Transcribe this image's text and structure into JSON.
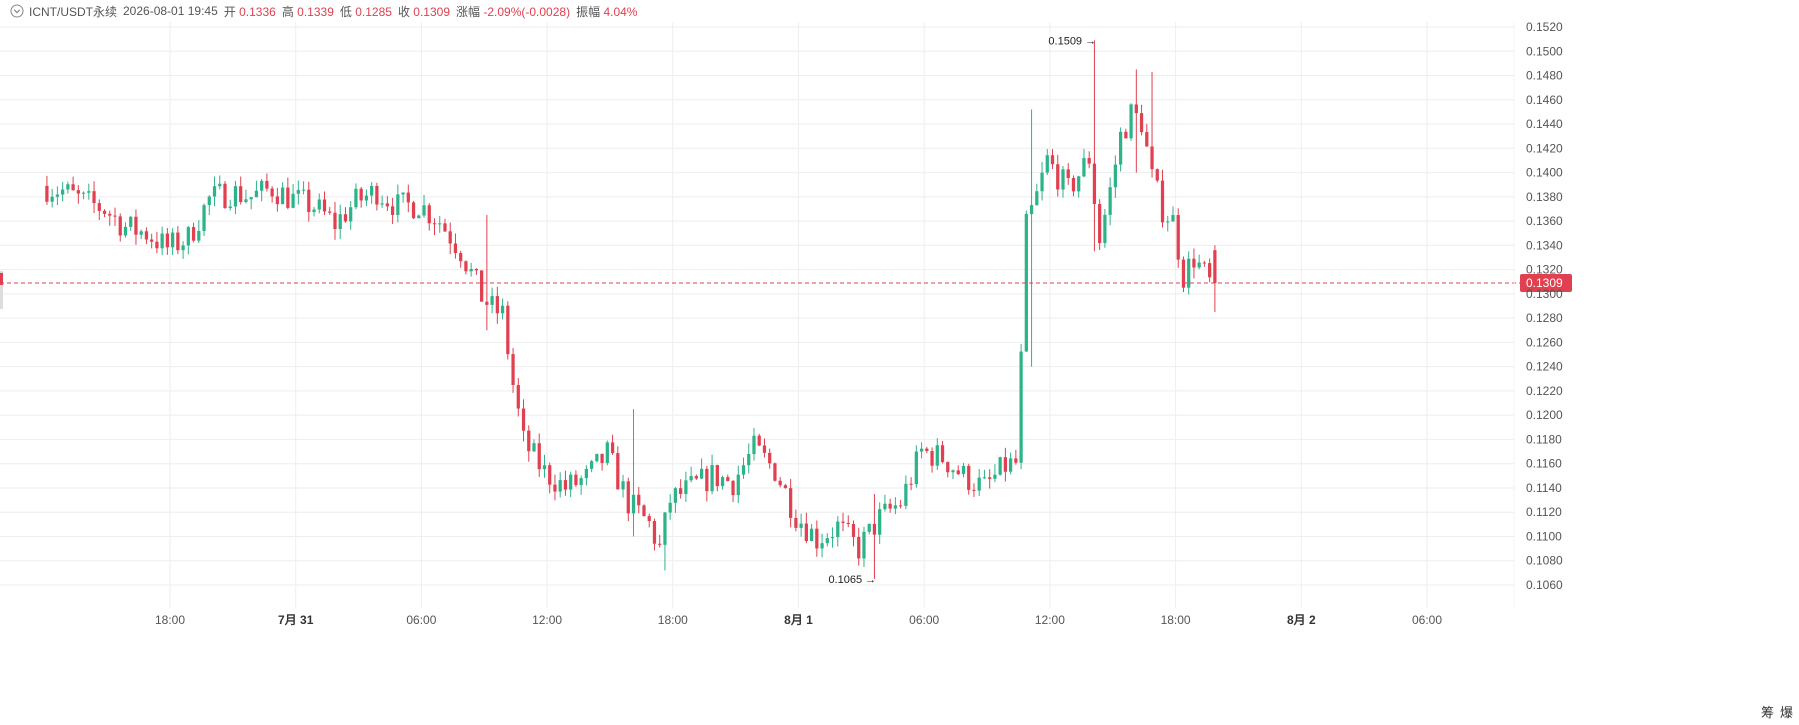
{
  "header": {
    "symbol": "ICNT/USDT永续",
    "datetime": "2026-08-01 19:45",
    "open_label": "开",
    "open": "0.1336",
    "high_label": "高",
    "high": "0.1339",
    "low_label": "低",
    "low": "0.1285",
    "close_label": "收",
    "close": "0.1309",
    "change_label": "涨幅",
    "change": "-2.09%(-0.0028)",
    "amplitude_label": "振幅",
    "amplitude": "4.04%"
  },
  "colors": {
    "up": "#2db389",
    "down": "#e0404f",
    "grid": "#eeeeee",
    "axis_text": "#555555"
  },
  "corner": {
    "label_a": "筹",
    "label_b": "爆"
  },
  "chart_data": {
    "type": "candlestick",
    "title": "ICNT/USDT永续",
    "ylim": [
      0.105,
      0.153
    ],
    "y_ticks": [
      "0.1520",
      "0.1500",
      "0.1480",
      "0.1460",
      "0.1440",
      "0.1420",
      "0.1400",
      "0.1380",
      "0.1360",
      "0.1340",
      "0.1320",
      "0.1300",
      "0.1280",
      "0.1260",
      "0.1240",
      "0.1220",
      "0.1200",
      "0.1180",
      "0.1160",
      "0.1140",
      "0.1120",
      "0.1100",
      "0.1080",
      "0.1060"
    ],
    "x_ticks": [
      {
        "label": "18:00",
        "t": "07-30 18:00",
        "bold": false
      },
      {
        "label": "7月 31",
        "t": "07-31 00:00",
        "bold": true
      },
      {
        "label": "06:00",
        "t": "07-31 06:00",
        "bold": false
      },
      {
        "label": "12:00",
        "t": "07-31 12:00",
        "bold": false
      },
      {
        "label": "18:00",
        "t": "07-31 18:00",
        "bold": false
      },
      {
        "label": "8月 1",
        "t": "08-01 00:00",
        "bold": true
      },
      {
        "label": "06:00",
        "t": "08-01 06:00",
        "bold": false
      },
      {
        "label": "12:00",
        "t": "08-01 12:00",
        "bold": false
      },
      {
        "label": "18:00",
        "t": "08-01 18:00",
        "bold": false
      },
      {
        "label": "8月 2",
        "t": "08-02 00:00",
        "bold": true
      },
      {
        "label": "06:00",
        "t": "08-02 06:00",
        "bold": false
      }
    ],
    "last_price": "0.1309",
    "annotations": [
      {
        "text": "0.1509",
        "value": 0.1509
      },
      {
        "text": "0.1065",
        "value": 0.1065
      }
    ],
    "anchors": [
      {
        "t": "07-30 12:00",
        "c": 0.1389
      },
      {
        "t": "07-30 13:00",
        "c": 0.1385
      },
      {
        "t": "07-30 14:00",
        "c": 0.1376
      },
      {
        "t": "07-30 15:00",
        "c": 0.137
      },
      {
        "t": "07-30 16:00",
        "c": 0.1355
      },
      {
        "t": "07-30 17:00",
        "c": 0.135
      },
      {
        "t": "07-30 18:00",
        "c": 0.1338
      },
      {
        "t": "07-30 19:00",
        "c": 0.1346
      },
      {
        "t": "07-30 20:00",
        "c": 0.1378
      },
      {
        "t": "07-30 21:00",
        "c": 0.1384
      },
      {
        "t": "07-30 22:00",
        "c": 0.138
      },
      {
        "t": "07-30 23:00",
        "c": 0.1387
      },
      {
        "t": "07-31 00:00",
        "c": 0.1378
      },
      {
        "t": "07-31 01:00",
        "c": 0.1372
      },
      {
        "t": "07-31 02:00",
        "c": 0.1358
      },
      {
        "t": "07-31 03:00",
        "c": 0.1376
      },
      {
        "t": "07-31 04:00",
        "c": 0.1385
      },
      {
        "t": "07-31 05:00",
        "c": 0.1372
      },
      {
        "t": "07-31 06:00",
        "c": 0.1374
      },
      {
        "t": "07-31 07:00",
        "c": 0.136
      },
      {
        "t": "07-31 08:00",
        "c": 0.1336
      },
      {
        "t": "07-31 09:00",
        "c": 0.1298
      },
      {
        "t": "07-31 09:30",
        "c": 0.1288
      },
      {
        "t": "07-31 10:00",
        "c": 0.1283
      },
      {
        "t": "07-31 10:30",
        "c": 0.1225
      },
      {
        "t": "07-31 11:00",
        "c": 0.1178
      },
      {
        "t": "07-31 12:00",
        "c": 0.1153
      },
      {
        "t": "07-31 13:00",
        "c": 0.114
      },
      {
        "t": "07-31 14:00",
        "c": 0.1148
      },
      {
        "t": "07-31 15:00",
        "c": 0.1168
      },
      {
        "t": "07-31 16:00",
        "c": 0.1128
      },
      {
        "t": "07-31 17:00",
        "c": 0.111
      },
      {
        "t": "07-31 17:30",
        "c": 0.109
      },
      {
        "t": "07-31 18:00",
        "c": 0.113
      },
      {
        "t": "07-31 19:00",
        "c": 0.114
      },
      {
        "t": "07-31 20:00",
        "c": 0.115
      },
      {
        "t": "07-31 21:00",
        "c": 0.1145
      },
      {
        "t": "07-31 22:00",
        "c": 0.1172
      },
      {
        "t": "07-31 23:00",
        "c": 0.1155
      },
      {
        "t": "08-01 00:00",
        "c": 0.1118
      },
      {
        "t": "08-01 01:00",
        "c": 0.1098
      },
      {
        "t": "08-01 02:00",
        "c": 0.1108
      },
      {
        "t": "08-01 03:00",
        "c": 0.109
      },
      {
        "t": "08-01 04:00",
        "c": 0.1115
      },
      {
        "t": "08-01 05:00",
        "c": 0.1128
      },
      {
        "t": "08-01 06:00",
        "c": 0.117
      },
      {
        "t": "08-01 07:00",
        "c": 0.1165
      },
      {
        "t": "08-01 08:00",
        "c": 0.115
      },
      {
        "t": "08-01 09:00",
        "c": 0.114
      },
      {
        "t": "08-01 10:00",
        "c": 0.1158
      },
      {
        "t": "08-01 10:30",
        "c": 0.116
      },
      {
        "t": "08-01 10:45",
        "c": 0.1245
      },
      {
        "t": "08-01 11:00",
        "c": 0.1355
      },
      {
        "t": "08-01 11:30",
        "c": 0.138
      },
      {
        "t": "08-01 12:00",
        "c": 0.141
      },
      {
        "t": "08-01 13:00",
        "c": 0.1385
      },
      {
        "t": "08-01 14:00",
        "c": 0.1412
      },
      {
        "t": "08-01 14:30",
        "c": 0.1345
      },
      {
        "t": "08-01 15:00",
        "c": 0.1385
      },
      {
        "t": "08-01 15:30",
        "c": 0.143
      },
      {
        "t": "08-01 16:00",
        "c": 0.1448
      },
      {
        "t": "08-01 16:30",
        "c": 0.1442
      },
      {
        "t": "08-01 17:00",
        "c": 0.1395
      },
      {
        "t": "08-01 17:30",
        "c": 0.137
      },
      {
        "t": "08-01 18:00",
        "c": 0.136
      },
      {
        "t": "08-01 18:30",
        "c": 0.1315
      },
      {
        "t": "08-01 19:00",
        "c": 0.133
      },
      {
        "t": "08-01 19:45",
        "c": 0.1309
      }
    ],
    "extremes": [
      {
        "t": "07-31 09:00",
        "high": 0.1365,
        "low": 0.127
      },
      {
        "t": "07-31 16:00",
        "high": 0.1205,
        "low": 0.11
      },
      {
        "t": "07-31 17:30",
        "high": 0.111,
        "low": 0.1072
      },
      {
        "t": "08-01 03:30",
        "high": 0.1135,
        "low": 0.1065
      },
      {
        "t": "08-01 11:00",
        "high": 0.1452,
        "low": 0.124
      },
      {
        "t": "08-01 14:00",
        "high": 0.1509,
        "low": 0.1335
      },
      {
        "t": "08-01 16:00",
        "high": 0.1485,
        "low": 0.14
      },
      {
        "t": "08-01 16:45",
        "high": 0.1483,
        "low": 0.141
      },
      {
        "t": "08-01 19:45",
        "high": 0.1339,
        "low": 0.1285
      }
    ]
  }
}
